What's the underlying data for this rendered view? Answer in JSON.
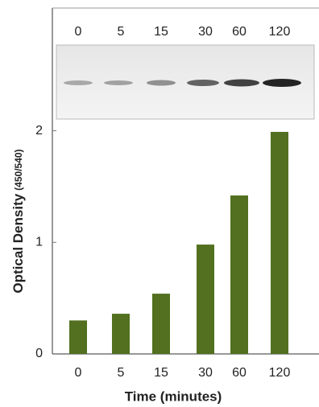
{
  "chart_data": {
    "type": "bar",
    "categories": [
      "0",
      "5",
      "15",
      "30",
      "60",
      "120"
    ],
    "values": [
      0.3,
      0.36,
      0.54,
      0.98,
      1.42,
      1.99
    ],
    "color": "#52701f",
    "ylim": [
      0,
      3.1
    ],
    "yticks": [
      0,
      1,
      2
    ],
    "x_label": "Time (minutes)",
    "y_label": "Optical Density",
    "y_label_sub": "(450/540)"
  }
}
